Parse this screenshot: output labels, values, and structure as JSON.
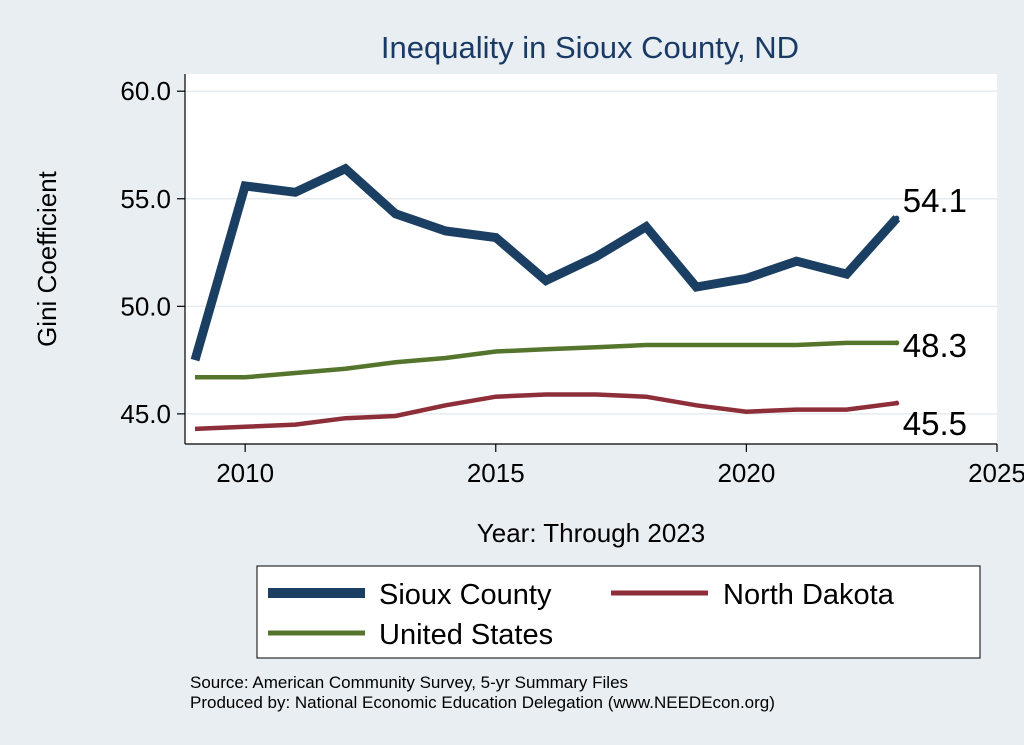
{
  "chart_data": {
    "type": "line",
    "title": "Inequality in Sioux County, ND",
    "xlabel": "Year: Through 2023",
    "ylabel": "Gini Coefficient",
    "xlim": [
      2008.8,
      2025
    ],
    "ylim": [
      43.6,
      60.8
    ],
    "x_ticks": [
      "2010",
      "2015",
      "2020",
      "2025"
    ],
    "y_ticks": [
      "45.0",
      "50.0",
      "55.0",
      "60.0"
    ],
    "x": [
      2009,
      2010,
      2011,
      2012,
      2013,
      2014,
      2015,
      2016,
      2017,
      2018,
      2019,
      2020,
      2021,
      2022,
      2023
    ],
    "series": [
      {
        "name": "Sioux County",
        "color": "#1a3f63",
        "values": [
          47.5,
          55.6,
          55.3,
          56.4,
          54.3,
          53.5,
          53.2,
          51.2,
          52.3,
          53.7,
          50.9,
          51.3,
          52.1,
          51.5,
          54.1
        ],
        "end_label": "54.1"
      },
      {
        "name": "North Dakota",
        "color": "#8e2e38",
        "values": [
          44.3,
          44.4,
          44.5,
          44.8,
          44.9,
          45.4,
          45.8,
          45.9,
          45.9,
          45.8,
          45.4,
          45.1,
          45.2,
          45.2,
          45.5
        ],
        "end_label": "45.5"
      },
      {
        "name": "United States",
        "color": "#55752d",
        "values": [
          46.7,
          46.7,
          46.9,
          47.1,
          47.4,
          47.6,
          47.9,
          48.0,
          48.1,
          48.2,
          48.2,
          48.2,
          48.2,
          48.3,
          48.3
        ],
        "end_label": "48.3"
      }
    ],
    "legend": [
      "Sioux County",
      "North Dakota",
      "United States"
    ],
    "source_lines": [
      "Source: American Community Survey, 5-yr Summary Files",
      "Produced by: National Economic Education Delegation (www.NEEDEcon.org)"
    ]
  }
}
